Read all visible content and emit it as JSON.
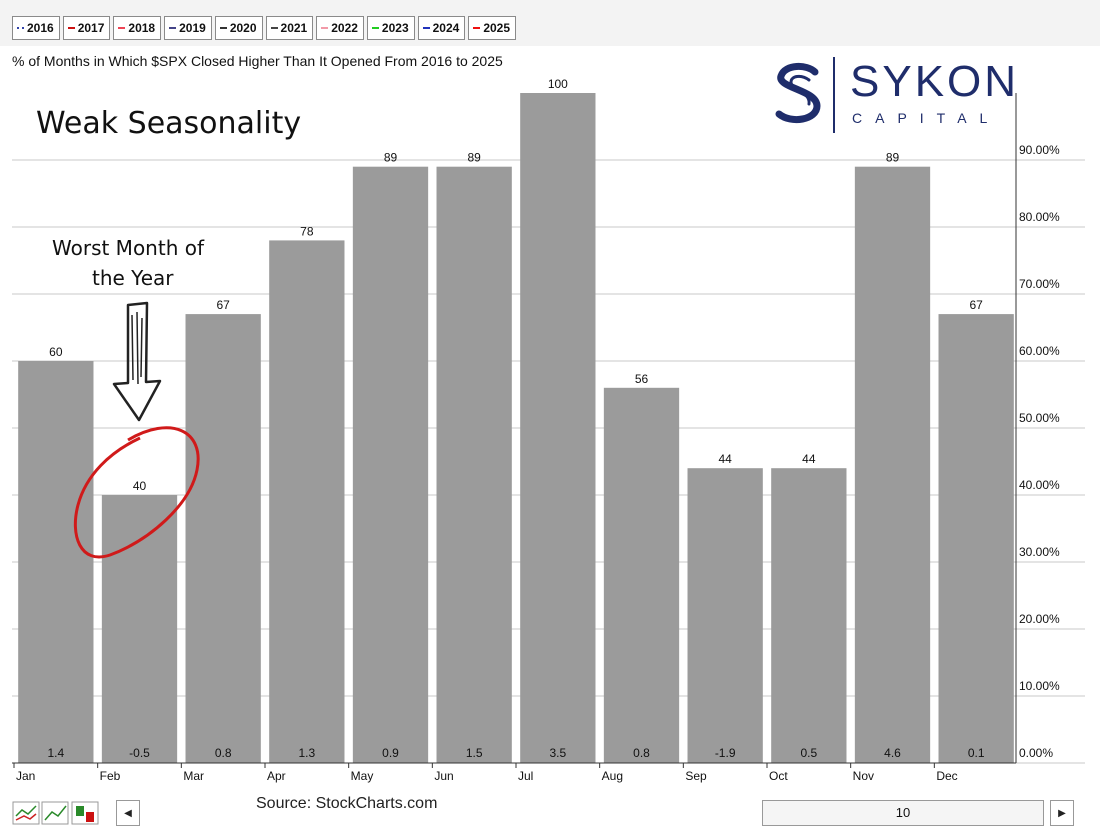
{
  "legend": [
    {
      "label": "2016",
      "color": "#3344aa",
      "style": "dotted"
    },
    {
      "label": "2017",
      "color": "#cc1111",
      "style": "solid"
    },
    {
      "label": "2018",
      "color": "#ee4455",
      "style": "solid"
    },
    {
      "label": "2019",
      "color": "#444488",
      "style": "solid"
    },
    {
      "label": "2020",
      "color": "#333333",
      "style": "solid"
    },
    {
      "label": "2021",
      "color": "#444444",
      "style": "solid"
    },
    {
      "label": "2022",
      "color": "#f29aa8",
      "style": "solid"
    },
    {
      "label": "2023",
      "color": "#22cc22",
      "style": "solid"
    },
    {
      "label": "2024",
      "color": "#2233bb",
      "style": "solid"
    },
    {
      "label": "2025",
      "color": "#ee1111",
      "style": "solid"
    }
  ],
  "subtitle": "% of Months in Which $SPX Closed Higher Than It Opened From 2016 to 2025",
  "annotations": {
    "weak": "Weak Seasonality",
    "worst_line1": "Worst Month of",
    "worst_line2": "the Year"
  },
  "logo": {
    "name": "SYKON",
    "sub": "CAPITAL",
    "color": "#1f2d6b"
  },
  "source": "Source: StockCharts.com",
  "slider_value": "10",
  "colors": {
    "bar": "#9b9b9b",
    "grid": "#c8c8c8",
    "circle": "#d01a1a"
  },
  "chart_data": {
    "type": "bar",
    "categories": [
      "Jan",
      "Feb",
      "Mar",
      "Apr",
      "May",
      "Jun",
      "Jul",
      "Aug",
      "Sep",
      "Oct",
      "Nov",
      "Dec"
    ],
    "values": [
      60,
      40,
      67,
      78,
      89,
      89,
      100,
      56,
      44,
      44,
      89,
      67
    ],
    "value_labels": [
      "60",
      "40",
      "67",
      "78",
      "89",
      "89",
      "100",
      "56",
      "44",
      "44",
      "89",
      "67"
    ],
    "avg_labels": [
      "1.4",
      "-0.5",
      "0.8",
      "1.3",
      "0.9",
      "1.5",
      "3.5",
      "0.8",
      "-1.9",
      "0.5",
      "4.6",
      "0.1"
    ],
    "ylim": [
      0,
      100
    ],
    "yticks": [
      0,
      10,
      20,
      30,
      40,
      50,
      60,
      70,
      80,
      90
    ],
    "ytick_labels": [
      "0.00%",
      "10.00%",
      "20.00%",
      "30.00%",
      "40.00%",
      "50.00%",
      "60.00%",
      "70.00%",
      "80.00%",
      "90.00%"
    ],
    "grid": true,
    "y_axis_position": "right"
  }
}
